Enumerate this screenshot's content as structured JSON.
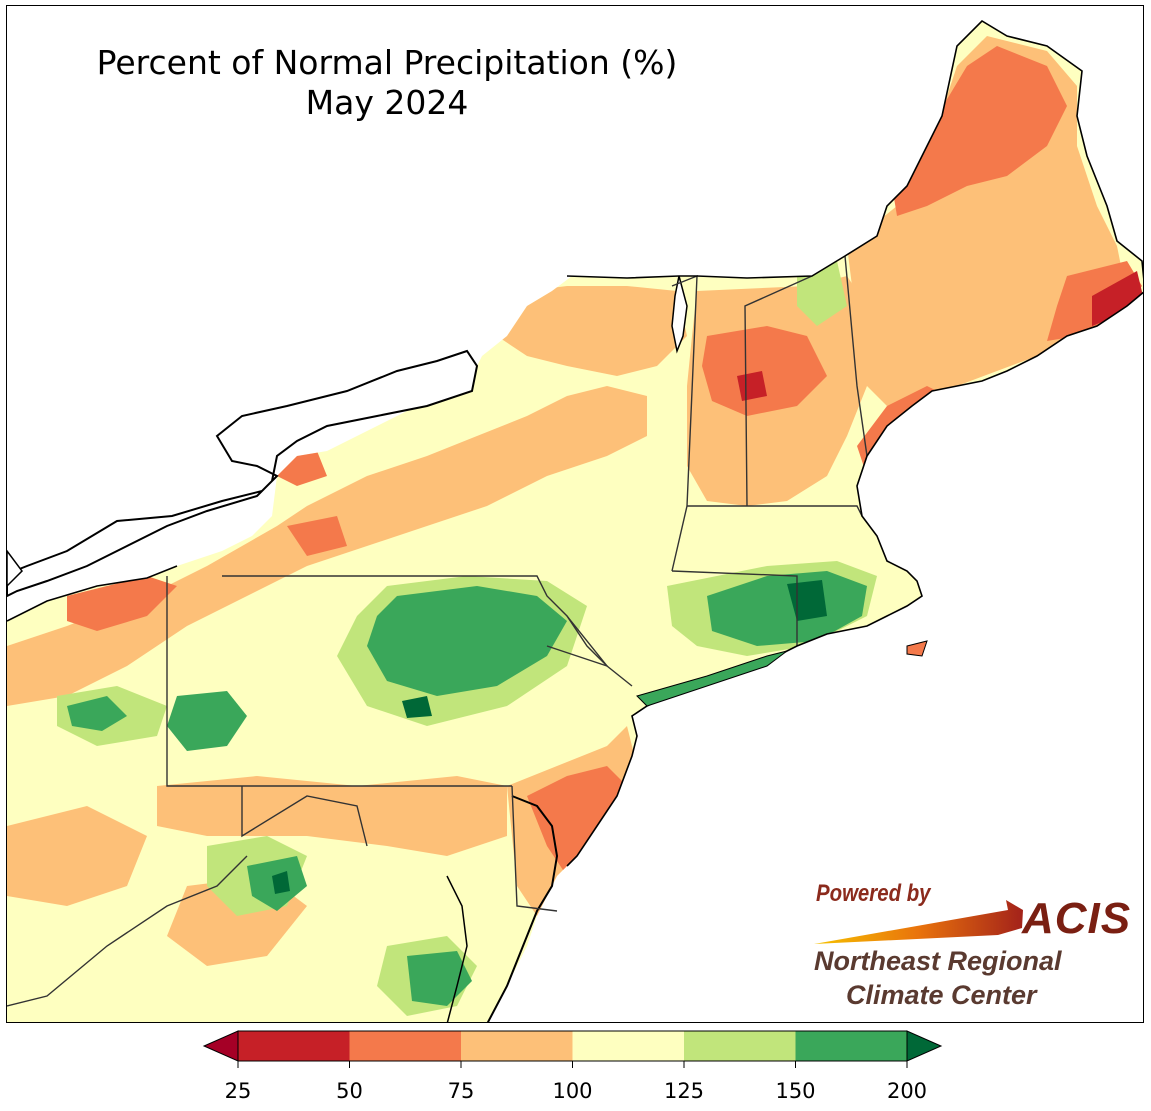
{
  "title": {
    "line1": "Percent of Normal Precipitation (%)",
    "line2": "May 2024"
  },
  "logo": {
    "powered_by": "Powered by",
    "acis": "ACIS",
    "org_line1": "Northeast Regional",
    "org_line2": "Climate Center"
  },
  "legend": {
    "ticks": [
      "25",
      "50",
      "75",
      "100",
      "125",
      "150",
      "200"
    ],
    "colors": [
      "#c62027",
      "#f4794b",
      "#fdc078",
      "#feffc0",
      "#c1e57b",
      "#3aa75a"
    ],
    "under_color": "#a50026",
    "over_color": "#006837"
  },
  "colors": {
    "water": "#ffffff",
    "boundary": "#000000",
    "county": "#bcbcaa"
  }
}
